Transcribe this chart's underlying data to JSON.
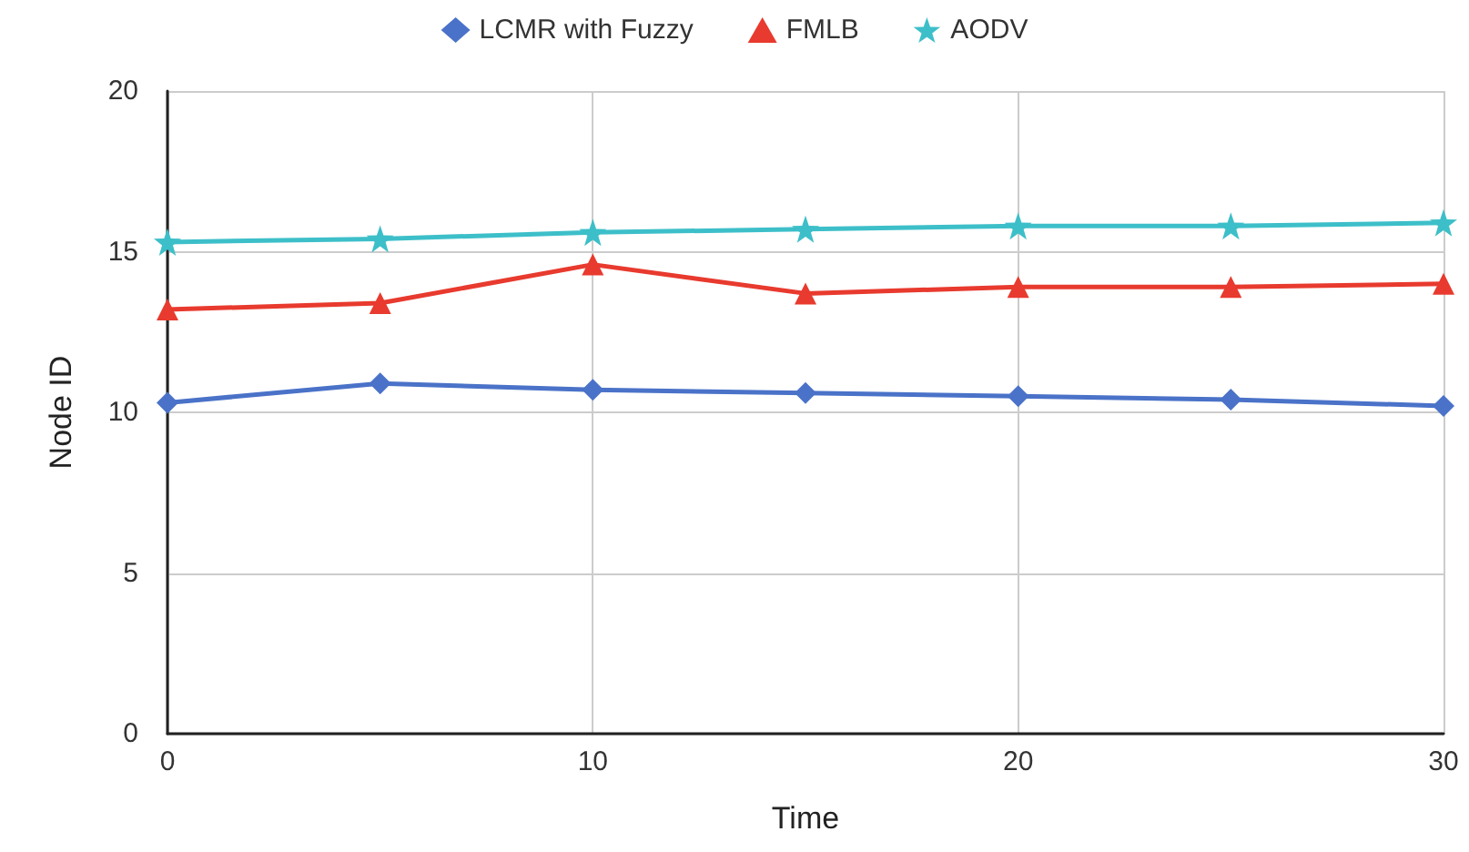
{
  "chart_data": {
    "type": "line",
    "xlabel": "Time",
    "ylabel": "Node ID",
    "x": [
      0,
      5,
      10,
      15,
      20,
      25,
      30
    ],
    "series": [
      {
        "name": "LCMR with Fuzzy",
        "color": "#4a72c8",
        "marker": "diamond",
        "values": [
          10.3,
          10.9,
          10.7,
          10.6,
          10.5,
          10.4,
          10.2
        ]
      },
      {
        "name": "FMLB",
        "color": "#e83a2e",
        "marker": "triangle",
        "values": [
          13.2,
          13.4,
          14.6,
          13.7,
          13.9,
          13.9,
          14.0
        ]
      },
      {
        "name": "AODV",
        "color": "#3dbfc9",
        "marker": "star",
        "values": [
          15.3,
          15.4,
          15.6,
          15.7,
          15.8,
          15.8,
          15.9
        ]
      }
    ],
    "xlim": [
      0,
      30
    ],
    "xticks": [
      0,
      10,
      20,
      30
    ],
    "ylim": [
      0,
      20
    ],
    "yticks": [
      0,
      5,
      10,
      15,
      20
    ],
    "grid": true,
    "legend": "top",
    "line_style": "solid"
  }
}
